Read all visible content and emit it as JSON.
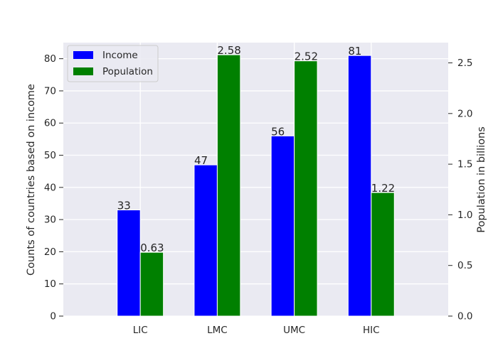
{
  "chart_data": {
    "type": "bar",
    "title": "",
    "categories": [
      "LIC",
      "LMC",
      "UMC",
      "HIC"
    ],
    "series": [
      {
        "name": "Income",
        "axis": "left",
        "color": "#0000ff",
        "values": [
          33,
          47,
          56,
          81
        ],
        "data_labels": [
          "33",
          "47",
          "56",
          "81"
        ]
      },
      {
        "name": "Population",
        "axis": "right",
        "color": "#008000",
        "values": [
          0.63,
          2.58,
          2.52,
          1.22
        ],
        "data_labels": [
          "0.63",
          "2.58",
          "2.52",
          "1.22"
        ]
      }
    ],
    "y_left": {
      "label": "Counts of countries based on income",
      "ylim": [
        0,
        85
      ],
      "ticks": [
        0,
        10,
        20,
        30,
        40,
        50,
        60,
        70,
        80
      ],
      "tick_labels": [
        "0",
        "10",
        "20",
        "30",
        "40",
        "50",
        "60",
        "70",
        "80"
      ]
    },
    "y_right": {
      "label": "Population in billions",
      "ylim": [
        0,
        2.7
      ],
      "ticks": [
        0,
        0.5,
        1,
        1.5,
        2,
        2.5
      ],
      "tick_labels": [
        "0.0",
        "0.5",
        "1.0",
        "1.5",
        "2.0",
        "2.5"
      ]
    },
    "x": {
      "label": "",
      "positions": [
        1,
        2,
        3,
        4
      ],
      "xlim": [
        0,
        5
      ]
    },
    "grid": true,
    "legend": {
      "position": "top-left",
      "entries": [
        "Income",
        "Population"
      ]
    },
    "style": {
      "plot_background": "#eaeaf2",
      "grid_color": "#ffffff",
      "text_color": "#262626"
    }
  }
}
